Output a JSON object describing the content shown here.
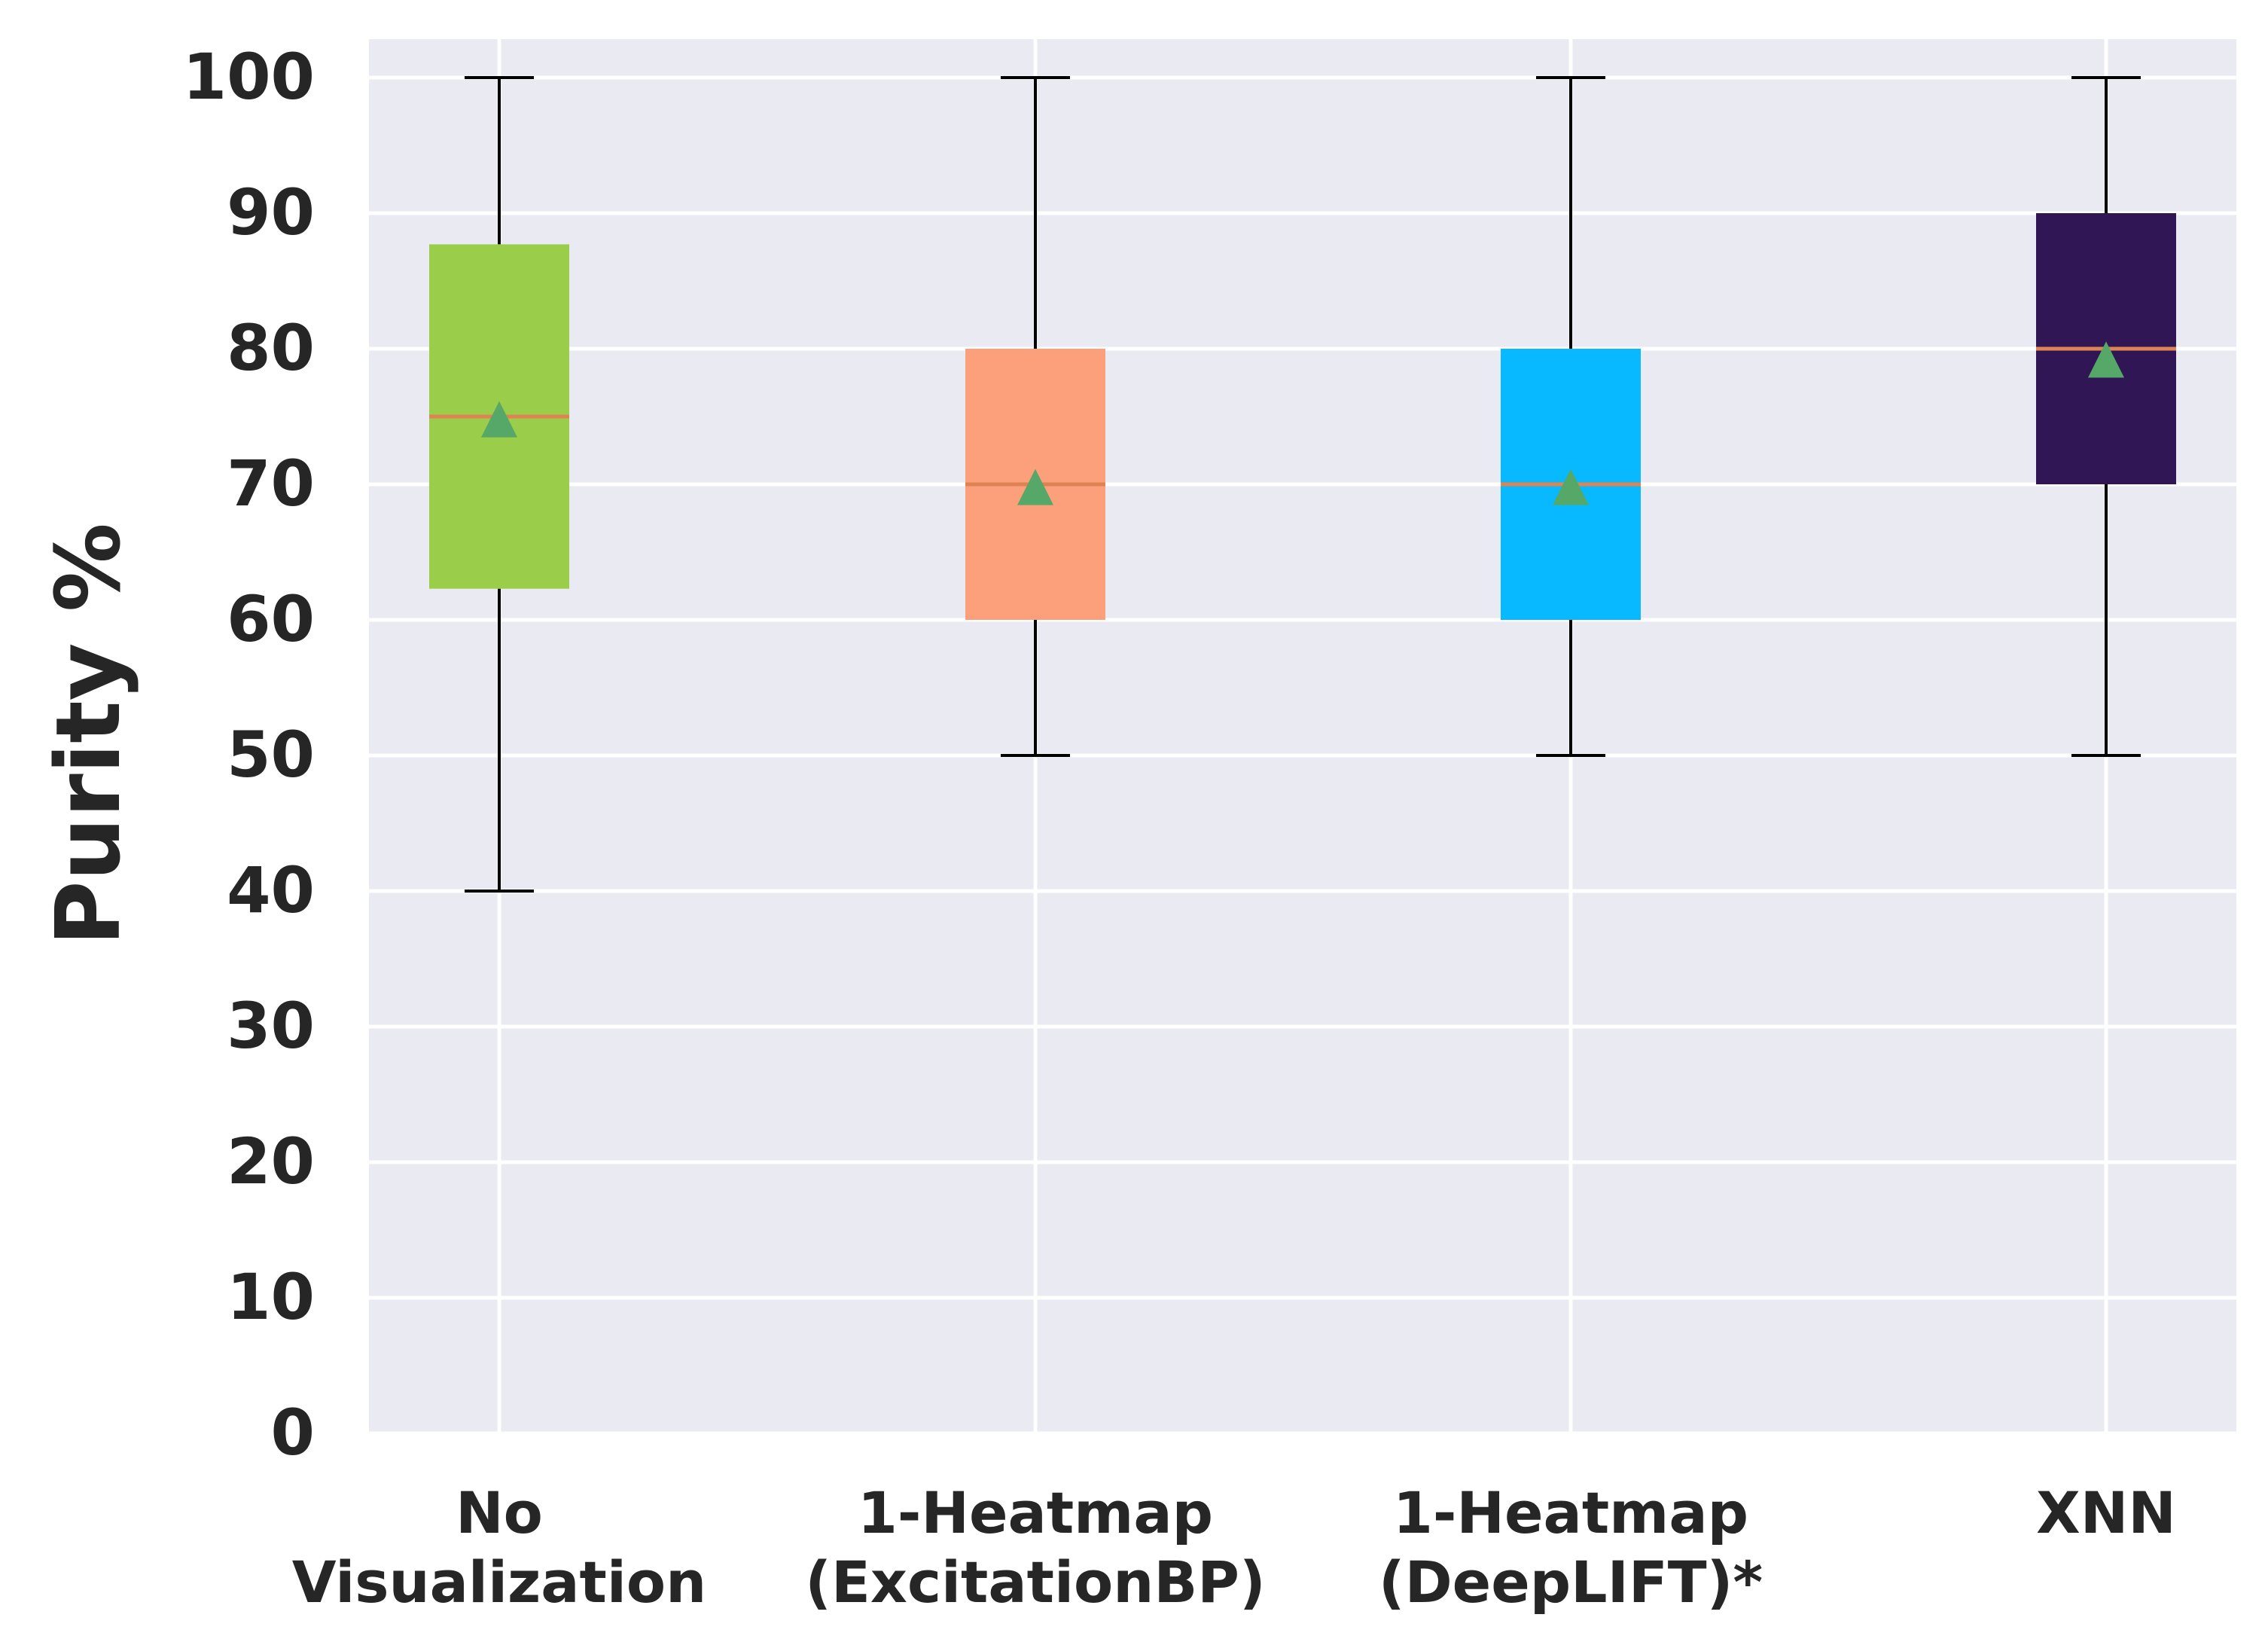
{
  "chart_data": {
    "type": "boxplot",
    "title": "",
    "xlabel": "",
    "ylabel": "Purity %",
    "ylim": [
      0,
      100
    ],
    "yticks": [
      0,
      10,
      20,
      30,
      40,
      50,
      60,
      70,
      80,
      90,
      100
    ],
    "grid": true,
    "categories": [
      {
        "label_lines": [
          "No",
          "Visualization"
        ],
        "whisker_low": 40,
        "q1": 62.3,
        "median": 75,
        "q3": 87.7,
        "whisker_high": 100,
        "mean": 74.8,
        "color": "#9ACD49"
      },
      {
        "label_lines": [
          "1-Heatmap",
          "(ExcitationBP)"
        ],
        "whisker_low": 50,
        "q1": 60,
        "median": 70,
        "q3": 80,
        "whisker_high": 100,
        "mean": 69.8,
        "color": "#FCA07B"
      },
      {
        "label_lines": [
          "1-Heatmap",
          "(DeepLIFT)*"
        ],
        "whisker_low": 50,
        "q1": 60,
        "median": 70,
        "q3": 80,
        "whisker_high": 100,
        "mean": 69.8,
        "color": "#08B9FF"
      },
      {
        "label_lines": [
          "XNN"
        ],
        "whisker_low": 50,
        "q1": 70,
        "median": 80,
        "q3": 90,
        "whisker_high": 100,
        "mean": 79.2,
        "color": "#311655"
      }
    ],
    "median_color": "#DD8452",
    "mean_marker_color": "#55A868",
    "background_color": "#EAEAF2"
  }
}
